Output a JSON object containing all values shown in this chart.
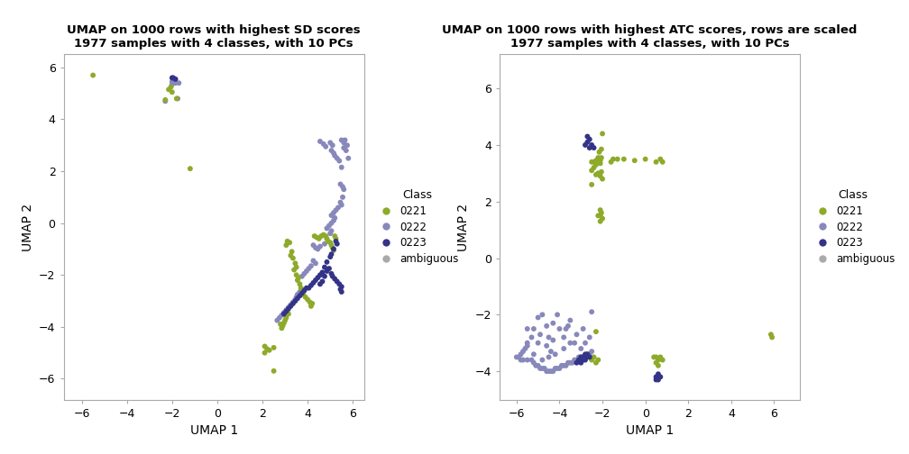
{
  "plot1": {
    "title1": "UMAP on 1000 rows with highest SD scores",
    "title2": "1977 samples with 4 classes, with 10 PCs",
    "xlabel": "UMAP 1",
    "ylabel": "UMAP 2",
    "xlim": [
      -6.8,
      6.5
    ],
    "ylim": [
      -6.8,
      6.5
    ],
    "xticks": [
      -6,
      -4,
      -2,
      0,
      2,
      4,
      6
    ],
    "yticks": [
      -6,
      -4,
      -2,
      0,
      2,
      4,
      6
    ],
    "c0221": "#8EAA2A",
    "c0222": "#8888BB",
    "c0223": "#333388",
    "cambiguous": "#AAAAAA",
    "pts_0221": [
      [
        -5.5,
        5.7
      ],
      [
        -2.05,
        5.25
      ],
      [
        -2.15,
        5.15
      ],
      [
        -2.0,
        5.05
      ],
      [
        -2.3,
        4.75
      ],
      [
        -1.8,
        4.8
      ],
      [
        -1.2,
        2.1
      ],
      [
        3.1,
        -0.7
      ],
      [
        3.05,
        -0.85
      ],
      [
        3.2,
        -0.75
      ],
      [
        3.3,
        -1.1
      ],
      [
        3.25,
        -1.25
      ],
      [
        3.35,
        -1.35
      ],
      [
        3.45,
        -1.55
      ],
      [
        3.5,
        -1.7
      ],
      [
        3.4,
        -1.8
      ],
      [
        3.5,
        -2.0
      ],
      [
        3.6,
        -2.1
      ],
      [
        3.55,
        -2.2
      ],
      [
        3.65,
        -2.35
      ],
      [
        3.7,
        -2.5
      ],
      [
        3.75,
        -2.65
      ],
      [
        3.8,
        -2.75
      ],
      [
        3.9,
        -2.85
      ],
      [
        4.0,
        -2.95
      ],
      [
        4.1,
        -3.05
      ],
      [
        4.2,
        -3.1
      ],
      [
        4.15,
        -3.2
      ],
      [
        3.1,
        -3.4
      ],
      [
        3.15,
        -3.5
      ],
      [
        3.05,
        -3.55
      ],
      [
        3.05,
        -3.65
      ],
      [
        3.0,
        -3.75
      ],
      [
        2.95,
        -3.85
      ],
      [
        2.9,
        -3.95
      ],
      [
        2.85,
        -4.05
      ],
      [
        2.8,
        -3.9
      ],
      [
        4.3,
        -0.5
      ],
      [
        4.4,
        -0.55
      ],
      [
        4.5,
        -0.6
      ],
      [
        4.6,
        -0.5
      ],
      [
        4.7,
        -0.45
      ],
      [
        4.8,
        -0.5
      ],
      [
        4.85,
        -0.6
      ],
      [
        4.9,
        -0.7
      ],
      [
        5.0,
        -0.75
      ],
      [
        5.05,
        -0.85
      ],
      [
        5.1,
        -0.95
      ],
      [
        5.15,
        -1.05
      ],
      [
        5.2,
        -0.5
      ],
      [
        5.25,
        -0.6
      ],
      [
        2.1,
        -4.75
      ],
      [
        2.2,
        -4.85
      ],
      [
        2.3,
        -4.9
      ],
      [
        2.1,
        -5.0
      ],
      [
        2.5,
        -4.8
      ],
      [
        2.5,
        -5.7
      ]
    ],
    "pts_0222": [
      [
        -2.3,
        4.7
      ],
      [
        -1.75,
        4.8
      ],
      [
        -2.0,
        5.35
      ],
      [
        -2.0,
        5.45
      ],
      [
        -1.9,
        5.5
      ],
      [
        -1.85,
        5.4
      ],
      [
        -1.7,
        5.4
      ],
      [
        4.55,
        3.15
      ],
      [
        4.7,
        3.05
      ],
      [
        4.8,
        2.95
      ],
      [
        5.0,
        3.1
      ],
      [
        5.1,
        3.0
      ],
      [
        5.05,
        2.8
      ],
      [
        5.15,
        2.7
      ],
      [
        5.2,
        2.6
      ],
      [
        5.3,
        2.5
      ],
      [
        5.4,
        2.4
      ],
      [
        5.5,
        2.15
      ],
      [
        5.45,
        1.5
      ],
      [
        5.55,
        1.4
      ],
      [
        5.6,
        1.3
      ],
      [
        5.55,
        1.0
      ],
      [
        5.45,
        0.8
      ],
      [
        5.5,
        0.7
      ],
      [
        5.35,
        0.6
      ],
      [
        5.25,
        0.5
      ],
      [
        5.15,
        0.4
      ],
      [
        5.05,
        0.3
      ],
      [
        5.2,
        0.2
      ],
      [
        5.15,
        0.1
      ],
      [
        5.05,
        0.0
      ],
      [
        4.95,
        -0.1
      ],
      [
        4.85,
        -0.2
      ],
      [
        5.05,
        -0.3
      ],
      [
        5.0,
        -0.4
      ],
      [
        4.75,
        -0.8
      ],
      [
        4.55,
        -0.9
      ],
      [
        4.45,
        -1.0
      ],
      [
        4.35,
        -0.95
      ],
      [
        4.25,
        -0.85
      ],
      [
        4.25,
        -1.45
      ],
      [
        4.35,
        -1.55
      ],
      [
        4.15,
        -1.65
      ],
      [
        4.05,
        -1.75
      ],
      [
        3.95,
        -1.85
      ],
      [
        3.85,
        -1.95
      ],
      [
        3.75,
        -2.05
      ],
      [
        3.75,
        -2.55
      ],
      [
        3.65,
        -2.65
      ],
      [
        3.55,
        -2.75
      ],
      [
        3.5,
        -2.85
      ],
      [
        3.45,
        -2.95
      ],
      [
        3.35,
        -3.05
      ],
      [
        3.25,
        -3.15
      ],
      [
        3.15,
        -3.25
      ],
      [
        3.05,
        -3.35
      ],
      [
        2.95,
        -3.45
      ],
      [
        2.85,
        -3.55
      ],
      [
        2.75,
        -3.65
      ],
      [
        2.65,
        -3.75
      ],
      [
        5.6,
        2.9
      ],
      [
        5.7,
        2.8
      ],
      [
        5.65,
        3.2
      ],
      [
        5.75,
        3.0
      ],
      [
        5.8,
        2.5
      ],
      [
        5.5,
        3.2
      ],
      [
        5.6,
        3.1
      ]
    ],
    "pts_0223": [
      [
        -2.0,
        5.6
      ],
      [
        -1.95,
        5.6
      ],
      [
        -1.85,
        5.55
      ],
      [
        5.25,
        -0.7
      ],
      [
        5.3,
        -0.8
      ],
      [
        5.15,
        -1.0
      ],
      [
        5.05,
        -1.2
      ],
      [
        5.0,
        -1.3
      ],
      [
        4.85,
        -1.5
      ],
      [
        4.75,
        -1.7
      ],
      [
        4.65,
        -1.9
      ],
      [
        4.55,
        -2.0
      ],
      [
        4.45,
        -2.1
      ],
      [
        4.35,
        -2.2
      ],
      [
        4.25,
        -2.3
      ],
      [
        4.15,
        -2.4
      ],
      [
        4.05,
        -2.5
      ],
      [
        3.95,
        -2.5
      ],
      [
        3.85,
        -2.6
      ],
      [
        3.75,
        -2.7
      ],
      [
        3.65,
        -2.8
      ],
      [
        3.55,
        -2.9
      ],
      [
        3.45,
        -3.0
      ],
      [
        3.35,
        -3.1
      ],
      [
        3.25,
        -3.2
      ],
      [
        3.15,
        -3.3
      ],
      [
        3.05,
        -3.4
      ],
      [
        2.95,
        -3.5
      ],
      [
        4.95,
        -1.75
      ],
      [
        4.85,
        -1.85
      ],
      [
        4.75,
        -2.05
      ],
      [
        4.65,
        -2.25
      ],
      [
        4.55,
        -2.35
      ],
      [
        5.05,
        -1.95
      ],
      [
        5.1,
        -2.05
      ],
      [
        5.2,
        -2.15
      ],
      [
        5.3,
        -2.25
      ],
      [
        5.4,
        -2.35
      ],
      [
        5.5,
        -2.45
      ],
      [
        5.5,
        -2.65
      ],
      [
        5.45,
        -2.55
      ]
    ]
  },
  "plot2": {
    "title1": "UMAP on 1000 rows with highest ATC scores, rows are scaled",
    "title2": "1977 samples with 4 classes, with 10 PCs",
    "xlabel": "UMAP 1",
    "ylabel": "UMAP 2",
    "xlim": [
      -6.8,
      7.2
    ],
    "ylim": [
      -5.0,
      7.2
    ],
    "xticks": [
      -6,
      -4,
      -2,
      0,
      2,
      4,
      6
    ],
    "yticks": [
      -4,
      -2,
      0,
      2,
      4,
      6
    ],
    "c0221": "#8EAA2A",
    "c0222": "#8888BB",
    "c0223": "#333388",
    "cambiguous": "#AAAAAA",
    "pts_0221": [
      [
        -2.0,
        4.4
      ],
      [
        -2.05,
        3.85
      ],
      [
        -2.15,
        3.75
      ],
      [
        -2.05,
        3.55
      ],
      [
        -2.2,
        3.55
      ],
      [
        -2.1,
        3.45
      ],
      [
        -2.3,
        3.45
      ],
      [
        -2.4,
        3.4
      ],
      [
        -2.5,
        3.4
      ],
      [
        -2.1,
        3.35
      ],
      [
        -2.3,
        3.3
      ],
      [
        -2.4,
        3.2
      ],
      [
        -2.5,
        3.1
      ],
      [
        -2.05,
        3.05
      ],
      [
        -2.2,
        3.0
      ],
      [
        -2.3,
        2.95
      ],
      [
        -2.1,
        2.9
      ],
      [
        -2.0,
        2.8
      ],
      [
        -1.5,
        3.5
      ],
      [
        -1.6,
        3.4
      ],
      [
        -1.3,
        3.5
      ],
      [
        -1.0,
        3.5
      ],
      [
        -0.5,
        3.45
      ],
      [
        0.0,
        3.5
      ],
      [
        0.5,
        3.4
      ],
      [
        0.7,
        3.5
      ],
      [
        0.8,
        3.4
      ],
      [
        -2.5,
        2.6
      ],
      [
        -2.1,
        1.7
      ],
      [
        -2.05,
        1.6
      ],
      [
        -2.1,
        1.5
      ],
      [
        -2.2,
        1.5
      ],
      [
        -2.0,
        1.4
      ],
      [
        -2.1,
        1.3
      ],
      [
        -2.3,
        -2.6
      ],
      [
        -2.4,
        -3.5
      ],
      [
        -2.5,
        -3.6
      ],
      [
        -2.3,
        -3.7
      ],
      [
        -2.2,
        -3.6
      ],
      [
        0.5,
        -3.5
      ],
      [
        0.6,
        -3.6
      ],
      [
        0.7,
        -3.5
      ],
      [
        0.8,
        -3.6
      ],
      [
        0.5,
        -3.7
      ],
      [
        0.6,
        -3.8
      ],
      [
        0.4,
        -3.5
      ],
      [
        5.85,
        -2.7
      ],
      [
        5.9,
        -2.8
      ]
    ],
    "pts_0222": [
      [
        -5.0,
        -2.1
      ],
      [
        -5.2,
        -2.5
      ],
      [
        -5.3,
        -2.8
      ],
      [
        -5.5,
        -3.0
      ],
      [
        -5.5,
        -3.1
      ],
      [
        -5.6,
        -3.2
      ],
      [
        -5.7,
        -3.3
      ],
      [
        -5.8,
        -3.4
      ],
      [
        -5.9,
        -3.5
      ],
      [
        -6.0,
        -3.5
      ],
      [
        -5.8,
        -3.6
      ],
      [
        -5.7,
        -3.6
      ],
      [
        -5.5,
        -3.6
      ],
      [
        -5.3,
        -3.6
      ],
      [
        -5.2,
        -3.7
      ],
      [
        -5.1,
        -3.8
      ],
      [
        -5.0,
        -3.8
      ],
      [
        -4.9,
        -3.9
      ],
      [
        -4.8,
        -3.9
      ],
      [
        -4.7,
        -3.9
      ],
      [
        -4.6,
        -4.0
      ],
      [
        -4.5,
        -4.0
      ],
      [
        -4.4,
        -4.0
      ],
      [
        -4.3,
        -4.0
      ],
      [
        -4.2,
        -3.9
      ],
      [
        -4.1,
        -3.9
      ],
      [
        -4.0,
        -3.9
      ],
      [
        -3.9,
        -3.8
      ],
      [
        -3.8,
        -3.8
      ],
      [
        -3.7,
        -3.8
      ],
      [
        -3.6,
        -3.7
      ],
      [
        -3.5,
        -3.7
      ],
      [
        -3.4,
        -3.7
      ],
      [
        -3.3,
        -3.6
      ],
      [
        -3.2,
        -3.6
      ],
      [
        -3.1,
        -3.5
      ],
      [
        -3.0,
        -3.5
      ],
      [
        -2.9,
        -3.5
      ],
      [
        -2.8,
        -3.5
      ],
      [
        -2.7,
        -3.4
      ],
      [
        -2.6,
        -3.4
      ],
      [
        -2.5,
        -3.3
      ],
      [
        -3.5,
        -2.2
      ],
      [
        -4.0,
        -2.5
      ],
      [
        -4.5,
        -2.8
      ],
      [
        -5.0,
        -3.0
      ],
      [
        -5.5,
        -2.5
      ],
      [
        -4.8,
        -2.0
      ],
      [
        -4.3,
        -2.3
      ],
      [
        -3.8,
        -2.8
      ],
      [
        -3.3,
        -3.0
      ],
      [
        -3.0,
        -3.2
      ],
      [
        -2.8,
        -3.0
      ],
      [
        -2.6,
        -2.8
      ],
      [
        -2.9,
        -2.5
      ],
      [
        -3.2,
        -2.7
      ],
      [
        -3.5,
        -3.0
      ],
      [
        -3.8,
        -3.2
      ],
      [
        -4.2,
        -3.4
      ],
      [
        -4.5,
        -3.5
      ],
      [
        -4.8,
        -3.6
      ],
      [
        -4.6,
        -2.4
      ],
      [
        -4.1,
        -2.0
      ],
      [
        -3.6,
        -2.4
      ],
      [
        -2.5,
        -1.9
      ],
      [
        -4.4,
        -3.3
      ],
      [
        -4.6,
        -3.1
      ],
      [
        -5.2,
        -3.4
      ],
      [
        -4.9,
        -2.7
      ],
      [
        -3.7,
        -2.5
      ],
      [
        -4.3,
        -2.9
      ]
    ],
    "pts_0223": [
      [
        -2.6,
        4.2
      ],
      [
        -2.7,
        4.1
      ],
      [
        -2.8,
        4.0
      ],
      [
        -2.7,
        4.3
      ],
      [
        -2.5,
        4.0
      ],
      [
        -2.4,
        3.9
      ],
      [
        -2.6,
        3.9
      ],
      [
        -2.7,
        -3.4
      ],
      [
        -2.8,
        -3.4
      ],
      [
        -2.9,
        -3.5
      ],
      [
        -3.0,
        -3.5
      ],
      [
        -3.1,
        -3.6
      ],
      [
        -3.2,
        -3.7
      ],
      [
        -3.0,
        -3.7
      ],
      [
        -2.9,
        -3.6
      ],
      [
        -2.8,
        -3.6
      ],
      [
        -2.7,
        -3.5
      ],
      [
        -2.6,
        -3.5
      ],
      [
        0.5,
        -4.2
      ],
      [
        0.6,
        -4.1
      ],
      [
        0.7,
        -4.2
      ],
      [
        0.5,
        -4.3
      ],
      [
        0.6,
        -4.3
      ]
    ]
  }
}
